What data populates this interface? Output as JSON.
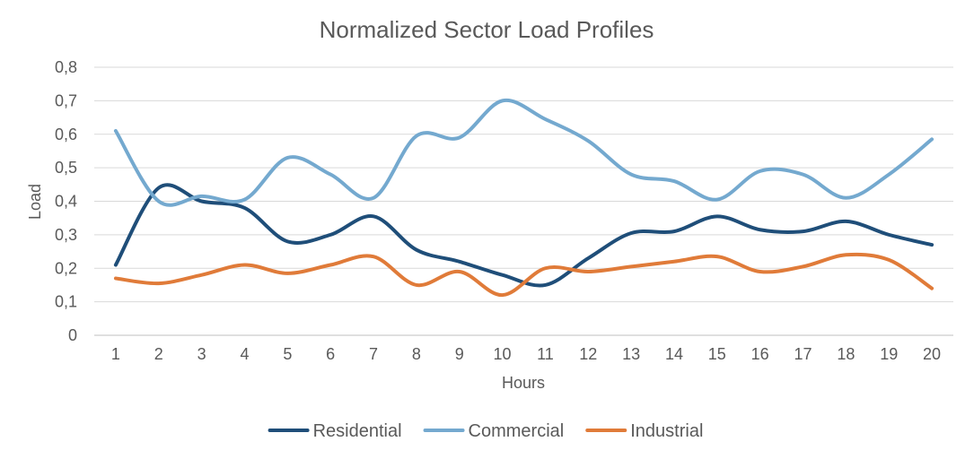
{
  "chart_data": {
    "type": "line",
    "title": "Normalized Sector Load Profiles",
    "xlabel": "Hours",
    "ylabel": "Load",
    "ylim": [
      0,
      0.8
    ],
    "ytick_step": 0.1,
    "ytick_labels": [
      "0",
      "0,1",
      "0,2",
      "0,3",
      "0,4",
      "0,5",
      "0,6",
      "0,7",
      "0,8"
    ],
    "categories": [
      "1",
      "2",
      "3",
      "4",
      "5",
      "6",
      "7",
      "8",
      "9",
      "10",
      "11",
      "12",
      "13",
      "14",
      "15",
      "16",
      "17",
      "18",
      "19",
      "20"
    ],
    "grid": true,
    "smooth": true,
    "legend_position": "bottom",
    "series": [
      {
        "name": "Residential",
        "color": "#1f4e79",
        "values": [
          0.21,
          0.44,
          0.4,
          0.38,
          0.28,
          0.3,
          0.355,
          0.255,
          0.22,
          0.18,
          0.15,
          0.23,
          0.305,
          0.31,
          0.355,
          0.315,
          0.31,
          0.34,
          0.3,
          0.27
        ]
      },
      {
        "name": "Commercial",
        "color": "#74a9cf",
        "values": [
          0.61,
          0.4,
          0.415,
          0.405,
          0.53,
          0.48,
          0.41,
          0.595,
          0.59,
          0.7,
          0.645,
          0.58,
          0.48,
          0.46,
          0.405,
          0.49,
          0.48,
          0.41,
          0.48,
          0.585
        ]
      },
      {
        "name": "Industrial",
        "color": "#e07b39",
        "values": [
          0.17,
          0.155,
          0.18,
          0.21,
          0.185,
          0.21,
          0.235,
          0.15,
          0.19,
          0.12,
          0.2,
          0.19,
          0.205,
          0.22,
          0.235,
          0.19,
          0.205,
          0.24,
          0.225,
          0.14
        ]
      }
    ]
  }
}
